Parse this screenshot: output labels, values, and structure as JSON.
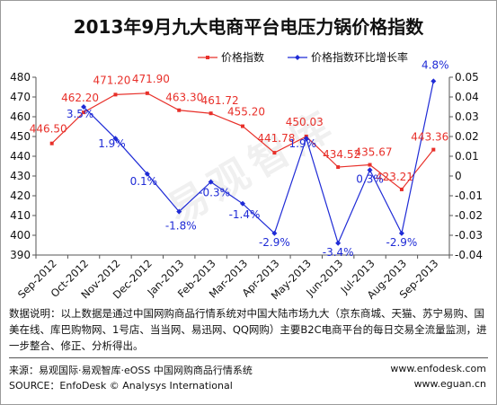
{
  "title": "2013年9月九大电商平台电压力锅价格指数",
  "watermark": "易观智库",
  "note": "数据说明：以上数据是通过中国网购商品行情系统对中国大陆市场九大（京东商城、天猫、苏宁易购、国美在线、库巴购物网、1号店、当当网、易迅网、QQ网购）主要B2C电商平台的每日交易全流量监测，进一步整合、修正、分析得出。",
  "source": "来源：易观国际·易观智库·eOSS 中国网购商品行情系统",
  "source_en": "SOURCE：EnfoDesk © Analysys International",
  "url1": "www.enfodesk.com",
  "url2": "www.eguan.cn",
  "colors": {
    "price": "#e8302a",
    "ratio": "#1f2bd6",
    "price_label": "#e8302a",
    "ratio_label": "#1f2bd6"
  },
  "chart_data": {
    "type": "line",
    "title": "2013年9月九大电商平台电压力锅价格指数",
    "categories": [
      "Sep-2012",
      "Oct-2012",
      "Nov-2012",
      "Dec-2012",
      "Jan-2013",
      "Feb-2013",
      "Mar-2013",
      "Apr-2013",
      "May-2013",
      "Jun-2013",
      "Jul-2013",
      "Aug-2013",
      "Sep-2013"
    ],
    "series": [
      {
        "name": "价格指数",
        "axis": "left",
        "values": [
          446.5,
          462.2,
          471.2,
          471.9,
          463.3,
          461.72,
          455.2,
          441.78,
          450.03,
          434.52,
          435.67,
          423.21,
          443.36
        ],
        "labels": [
          "446.50",
          "462.20",
          "471.20",
          "471.90",
          "463.30",
          "461.72",
          "455.20",
          "441.78",
          "450.03",
          "434.52",
          "435.67",
          "423.21",
          "443.36"
        ]
      },
      {
        "name": "价格指数环比增长率",
        "axis": "right",
        "values": [
          null,
          0.035,
          0.019,
          0.001,
          -0.018,
          -0.003,
          -0.014,
          -0.029,
          0.019,
          -0.034,
          0.003,
          -0.029,
          0.048
        ],
        "labels": [
          "",
          "3.5%",
          "1.9%",
          "0.1%",
          "-1.8%",
          "-0.3%",
          "-1.4%",
          "-2.9%",
          "1.9%",
          "-3.4%",
          "0.3%",
          "-2.9%",
          "4.8%"
        ]
      }
    ],
    "ylim_left": [
      390,
      480
    ],
    "yticks_left": [
      "390",
      "400",
      "410",
      "420",
      "430",
      "440",
      "450",
      "460",
      "470",
      "480"
    ],
    "ylim_right": [
      -0.04,
      0.05
    ],
    "yticks_right": [
      "-0.04",
      "-0.03",
      "-0.02",
      "-0.01",
      "0",
      "0.01",
      "0.02",
      "0.03",
      "0.04",
      "0.05"
    ],
    "legend": "top-right",
    "grid": false
  }
}
